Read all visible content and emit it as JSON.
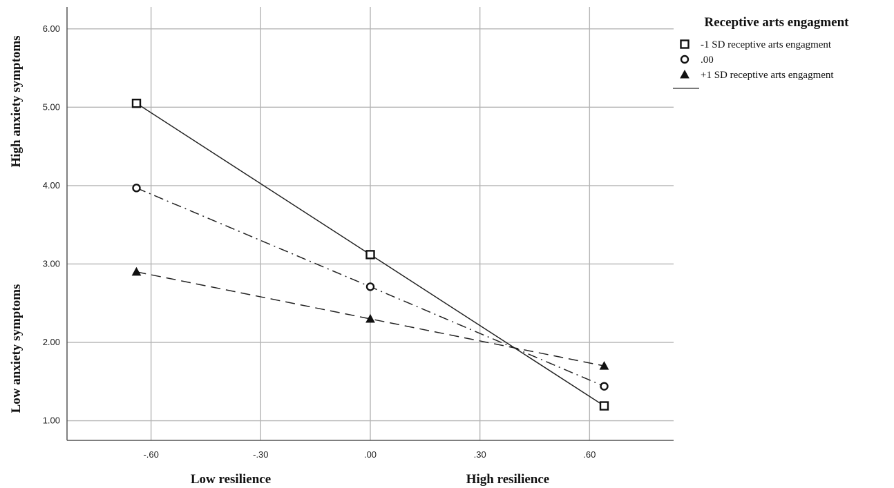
{
  "chart_data": {
    "type": "line",
    "title": "",
    "x_ticks": [
      "-.60",
      "-.30",
      ".00",
      ".30",
      ".60"
    ],
    "y_ticks": [
      "1.00",
      "2.00",
      "3.00",
      "4.00",
      "5.00",
      "6.00"
    ],
    "x_annotations": {
      "low": "Low resilience",
      "high": "High resilience"
    },
    "y_annotations": {
      "low": "Low anxiety  symptoms",
      "high": "High anxiety symptoms"
    },
    "xlim": [
      -0.83,
      0.83
    ],
    "ylim": [
      0.75,
      6.28
    ],
    "grid": true,
    "legend_position": "top-right",
    "legend_title": "Receptive arts engagment",
    "x": [
      -0.64,
      0.0,
      0.64
    ],
    "series": [
      {
        "name": "-1 SD receptive arts engagment",
        "marker": "square",
        "line_style": "solid",
        "values": [
          5.05,
          3.12,
          1.19
        ]
      },
      {
        "name": ".00",
        "marker": "circle",
        "line_style": "dash-dot",
        "values": [
          3.97,
          2.71,
          1.44
        ]
      },
      {
        "name": "+1 SD receptive arts engagment",
        "marker": "triangle",
        "line_style": "dashed",
        "values": [
          2.9,
          2.3,
          1.7
        ]
      }
    ],
    "colors": {
      "line": "#222222",
      "grid": "#b5b5b5",
      "axis": "#555555",
      "legend_line": "#7a7a7a"
    }
  }
}
